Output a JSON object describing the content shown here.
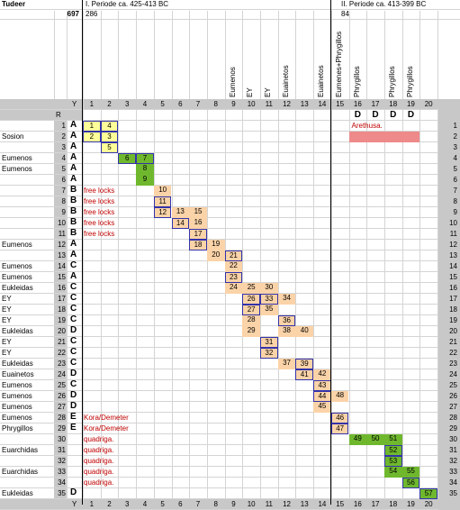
{
  "sheet": {
    "title": "Tudeer",
    "count": "697",
    "period1_label": "I. Periode ca. 425-413 BC",
    "period1_count": "286",
    "period2_label": "II. Periode ca. 413-399 BC",
    "period2_count": "84",
    "col_header_Y": "Y",
    "col_header_R": "R",
    "arethusa": "Arethusa."
  },
  "columns": [
    "1",
    "2",
    "3",
    "4",
    "5",
    "6",
    "7",
    "8",
    "9",
    "10",
    "11",
    "12",
    "13",
    "14",
    "15",
    "16",
    "17",
    "18",
    "19",
    "20"
  ],
  "column_names": [
    "",
    "",
    "",
    "",
    "",
    "",
    "",
    "",
    "Eumenos",
    "EY",
    "EY",
    "Euainetos",
    "",
    "Euainetos",
    "Eumenes+Phrygillos",
    "Phrygillos",
    "",
    "Phrygillos",
    "Phrygillos",
    ""
  ],
  "top_D": [
    "D",
    "D",
    "D",
    "D"
  ],
  "rows": [
    {
      "r": "1",
      "name": "",
      "letter": "A",
      "note": ""
    },
    {
      "r": "2",
      "name": "Sosion",
      "letter": "A",
      "note": ""
    },
    {
      "r": "3",
      "name": "",
      "letter": "A",
      "note": ""
    },
    {
      "r": "4",
      "name": "Eumenos",
      "letter": "A",
      "note": ""
    },
    {
      "r": "5",
      "name": "Eumenos",
      "letter": "A",
      "note": ""
    },
    {
      "r": "6",
      "name": "",
      "letter": "A",
      "note": ""
    },
    {
      "r": "7",
      "name": "",
      "letter": "B",
      "note": "free locks"
    },
    {
      "r": "8",
      "name": "",
      "letter": "B",
      "note": "free locks"
    },
    {
      "r": "9",
      "name": "",
      "letter": "B",
      "note": "free locks"
    },
    {
      "r": "10",
      "name": "",
      "letter": "B",
      "note": "free locks"
    },
    {
      "r": "11",
      "name": "",
      "letter": "B",
      "note": "free locks"
    },
    {
      "r": "12",
      "name": "Eumenos",
      "letter": "A",
      "note": ""
    },
    {
      "r": "13",
      "name": "",
      "letter": "A",
      "note": ""
    },
    {
      "r": "14",
      "name": "Eumenos",
      "letter": "C",
      "note": ""
    },
    {
      "r": "15",
      "name": "Eumenos",
      "letter": "A",
      "note": ""
    },
    {
      "r": "16",
      "name": "Eukleidas",
      "letter": "C",
      "note": ""
    },
    {
      "r": "17",
      "name": "EY",
      "letter": "C",
      "note": ""
    },
    {
      "r": "18",
      "name": "EY",
      "letter": "C",
      "note": ""
    },
    {
      "r": "19",
      "name": "EY",
      "letter": "C",
      "note": ""
    },
    {
      "r": "20",
      "name": "Eukleidas",
      "letter": "D",
      "note": ""
    },
    {
      "r": "21",
      "name": "EY",
      "letter": "C",
      "note": ""
    },
    {
      "r": "22",
      "name": "EY",
      "letter": "C",
      "note": ""
    },
    {
      "r": "23",
      "name": "Eukleidas",
      "letter": "C",
      "note": ""
    },
    {
      "r": "24",
      "name": "Euainetos",
      "letter": "D",
      "note": ""
    },
    {
      "r": "25",
      "name": "Eumenos",
      "letter": "C",
      "note": ""
    },
    {
      "r": "26",
      "name": "Eumenos",
      "letter": "D",
      "note": ""
    },
    {
      "r": "27",
      "name": "Eumenos",
      "letter": "D",
      "note": ""
    },
    {
      "r": "28",
      "name": "Eumenos",
      "letter": "E",
      "note": "Kora/Demeter"
    },
    {
      "r": "29",
      "name": "Phrygillos",
      "letter": "E",
      "note": "Kora/Demeter"
    },
    {
      "r": "30",
      "name": "",
      "letter": "",
      "note": "quadriga."
    },
    {
      "r": "31",
      "name": "Euarchidas",
      "letter": "",
      "note": "quadriga."
    },
    {
      "r": "32",
      "name": "",
      "letter": "",
      "note": "quadriga."
    },
    {
      "r": "33",
      "name": "Euarchidas",
      "letter": "",
      "note": "quadriga."
    },
    {
      "r": "34",
      "name": "",
      "letter": "",
      "note": "quadriga."
    },
    {
      "r": "35",
      "name": "Eukleidas",
      "letter": "D",
      "note": ""
    }
  ],
  "cells": [
    {
      "row": 1,
      "col": 1,
      "v": "1",
      "s": "yellow"
    },
    {
      "row": 1,
      "col": 2,
      "v": "4",
      "s": "yellow"
    },
    {
      "row": 2,
      "col": 1,
      "v": "2",
      "s": "yellow"
    },
    {
      "row": 2,
      "col": 2,
      "v": "3",
      "s": "yellow"
    },
    {
      "row": 3,
      "col": 2,
      "v": "5",
      "s": "yellow"
    },
    {
      "row": 4,
      "col": 3,
      "v": "6",
      "s": "greenb"
    },
    {
      "row": 4,
      "col": 4,
      "v": "7",
      "s": "greenb"
    },
    {
      "row": 5,
      "col": 4,
      "v": "8",
      "s": "green"
    },
    {
      "row": 6,
      "col": 4,
      "v": "9",
      "s": "green"
    },
    {
      "row": 7,
      "col": 5,
      "v": "10",
      "s": "orange"
    },
    {
      "row": 8,
      "col": 5,
      "v": "11",
      "s": "orangeb"
    },
    {
      "row": 9,
      "col": 5,
      "v": "12",
      "s": "orangeb"
    },
    {
      "row": 9,
      "col": 6,
      "v": "13",
      "s": "orange"
    },
    {
      "row": 9,
      "col": 7,
      "v": "15",
      "s": "orange"
    },
    {
      "row": 10,
      "col": 6,
      "v": "14",
      "s": "orangeb"
    },
    {
      "row": 10,
      "col": 7,
      "v": "16",
      "s": "orange"
    },
    {
      "row": 11,
      "col": 7,
      "v": "17",
      "s": "orangeb"
    },
    {
      "row": 12,
      "col": 7,
      "v": "18",
      "s": "orangeb"
    },
    {
      "row": 12,
      "col": 8,
      "v": "19",
      "s": "orange"
    },
    {
      "row": 13,
      "col": 8,
      "v": "20",
      "s": "orange"
    },
    {
      "row": 13,
      "col": 9,
      "v": "21",
      "s": "orangeb"
    },
    {
      "row": 14,
      "col": 9,
      "v": "22",
      "s": "orange"
    },
    {
      "row": 15,
      "col": 9,
      "v": "23",
      "s": "orangeb"
    },
    {
      "row": 16,
      "col": 9,
      "v": "24",
      "s": "orange"
    },
    {
      "row": 16,
      "col": 10,
      "v": "25",
      "s": "orange"
    },
    {
      "row": 16,
      "col": 11,
      "v": "30",
      "s": "orange"
    },
    {
      "row": 17,
      "col": 10,
      "v": "26",
      "s": "orangeb"
    },
    {
      "row": 17,
      "col": 11,
      "v": "33",
      "s": "orangeb"
    },
    {
      "row": 17,
      "col": 12,
      "v": "34",
      "s": "orange"
    },
    {
      "row": 18,
      "col": 10,
      "v": "27",
      "s": "orangeb"
    },
    {
      "row": 18,
      "col": 11,
      "v": "35",
      "s": "orange"
    },
    {
      "row": 19,
      "col": 10,
      "v": "28",
      "s": "orange"
    },
    {
      "row": 19,
      "col": 12,
      "v": "36",
      "s": "orangeb"
    },
    {
      "row": 20,
      "col": 10,
      "v": "29",
      "s": "orange"
    },
    {
      "row": 20,
      "col": 12,
      "v": "38",
      "s": "orange"
    },
    {
      "row": 20,
      "col": 13,
      "v": "40",
      "s": "orange"
    },
    {
      "row": 21,
      "col": 11,
      "v": "31",
      "s": "orangeb"
    },
    {
      "row": 22,
      "col": 11,
      "v": "32",
      "s": "orangeb"
    },
    {
      "row": 23,
      "col": 12,
      "v": "37",
      "s": "orange"
    },
    {
      "row": 23,
      "col": 13,
      "v": "39",
      "s": "orangeb"
    },
    {
      "row": 24,
      "col": 13,
      "v": "41",
      "s": "orangeb"
    },
    {
      "row": 24,
      "col": 14,
      "v": "42",
      "s": "orange"
    },
    {
      "row": 25,
      "col": 14,
      "v": "43",
      "s": "orangeb"
    },
    {
      "row": 26,
      "col": 14,
      "v": "44",
      "s": "orangeb"
    },
    {
      "row": 26,
      "col": 15,
      "v": "48",
      "s": "orange"
    },
    {
      "row": 27,
      "col": 14,
      "v": "45",
      "s": "orange"
    },
    {
      "row": 28,
      "col": 15,
      "v": "46",
      "s": "orangeb"
    },
    {
      "row": 29,
      "col": 15,
      "v": "47",
      "s": "orangeb"
    },
    {
      "row": 30,
      "col": 16,
      "v": "49",
      "s": "green"
    },
    {
      "row": 30,
      "col": 17,
      "v": "50",
      "s": "green"
    },
    {
      "row": 30,
      "col": 18,
      "v": "51",
      "s": "green"
    },
    {
      "row": 31,
      "col": 18,
      "v": "52",
      "s": "greenb"
    },
    {
      "row": 32,
      "col": 18,
      "v": "53",
      "s": "greenb"
    },
    {
      "row": 33,
      "col": 18,
      "v": "54",
      "s": "green"
    },
    {
      "row": 33,
      "col": 19,
      "v": "55",
      "s": "green"
    },
    {
      "row": 34,
      "col": 19,
      "v": "56",
      "s": "greenb"
    },
    {
      "row": 35,
      "col": 20,
      "v": "57",
      "s": "greenb"
    }
  ]
}
